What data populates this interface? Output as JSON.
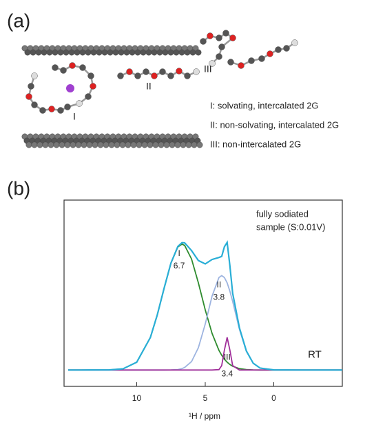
{
  "panel_a": {
    "label": "(a)",
    "molecules": [
      "I",
      "II",
      "III"
    ],
    "legend": [
      "I: solvating, intercalated 2G",
      "II: non-solvating, intercalated 2G",
      "III: non-intercalated 2G"
    ]
  },
  "chart_data": {
    "type": "line",
    "label": "(b)",
    "annotation": [
      "fully sodiated",
      "sample (S:0.01V)"
    ],
    "xlabel": "¹H / ppm",
    "x": [
      15,
      14,
      12,
      11,
      10,
      9,
      8.5,
      8,
      7.5,
      7,
      6.7,
      6.5,
      6,
      5.5,
      5,
      4.5,
      4,
      3.8,
      3.6,
      3.4,
      3.2,
      3,
      2.5,
      2,
      1.5,
      1,
      0,
      -2,
      -4,
      -5
    ],
    "xlim": [
      15.3,
      -5
    ],
    "xticks": [
      10,
      5,
      0
    ],
    "ylim": [
      -0.13,
      1.35
    ],
    "series": [
      {
        "name": "I",
        "peak": 6.7,
        "color": "#2e8b2e",
        "values": [
          0,
          0,
          0.001,
          0.009,
          0.062,
          0.259,
          0.437,
          0.65,
          0.849,
          0.977,
          1,
          0.99,
          0.882,
          0.693,
          0.478,
          0.291,
          0.156,
          0.117,
          0.086,
          0.062,
          0.044,
          0.03,
          0.011,
          0.004,
          0.001,
          0,
          0,
          0,
          0,
          0
        ]
      },
      {
        "name": "II",
        "peak": 3.8,
        "color": "#9db4e0",
        "values": [
          0,
          0,
          0,
          0,
          0,
          0,
          0,
          0,
          0.001,
          0.004,
          0.011,
          0.02,
          0.067,
          0.177,
          0.365,
          0.587,
          0.735,
          0.75,
          0.735,
          0.692,
          0.626,
          0.545,
          0.322,
          0.148,
          0.053,
          0.015,
          0.001,
          0,
          0,
          0
        ]
      },
      {
        "name": "III",
        "peak": 3.4,
        "color": "#a0309a",
        "values": [
          0,
          0,
          0,
          0,
          0,
          0,
          0,
          0,
          0,
          0,
          0,
          0,
          0,
          0,
          0,
          0,
          0.003,
          0.035,
          0.158,
          0.26,
          0.158,
          0.035,
          0,
          0,
          0,
          0,
          0,
          0,
          0,
          0
        ]
      },
      {
        "name": "RT",
        "color": "#29aed6",
        "values": [
          0,
          0,
          0.001,
          0.009,
          0.062,
          0.259,
          0.437,
          0.65,
          0.85,
          0.981,
          1.011,
          1.01,
          0.949,
          0.87,
          0.843,
          0.878,
          0.894,
          0.902,
          0.979,
          1.014,
          0.828,
          0.61,
          0.333,
          0.152,
          0.054,
          0.015,
          0.001,
          0,
          0,
          0
        ]
      }
    ]
  }
}
